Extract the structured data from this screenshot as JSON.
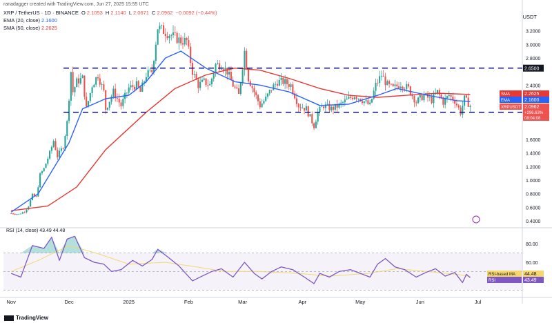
{
  "header": {
    "credit": "ranadagger created with TradingView.com, Jun 27, 2025 15:55 UTC",
    "symbol": "XRP / TetherUS · 1D · BINANCE",
    "ohlc": {
      "o_label": "O",
      "o": "2.1053",
      "h_label": "H",
      "h": "2.1140",
      "l_label": "L",
      "l": "2.0671",
      "c_label": "C",
      "c": "2.0962",
      "change": "−0.0092 (−0.44%)"
    },
    "ema_label": "EMA (20, close)",
    "ema_value": "2.1600",
    "sma_label": "SMA (50, close)",
    "sma_value": "2.2625"
  },
  "currency": "USDT",
  "footer_brand": "TradingView",
  "colors": {
    "up": "#26a69a",
    "down": "#ef5350",
    "ema": "#2962ff",
    "sma": "#e53935",
    "rsi": "#7e57c2",
    "rsi_ma": "#f5d76e",
    "level": "#1a237e"
  },
  "chart_data": [
    {
      "type": "candlestick",
      "title": "XRP / TetherUS · 1D · BINANCE",
      "x_ticks": [
        "Nov",
        "Dec",
        "2025",
        "Feb",
        "Mar",
        "Apr",
        "May",
        "Jun",
        "Jul"
      ],
      "y_ticks": [
        "0.4000",
        "0.6000",
        "0.8000",
        "1.0000",
        "1.2000",
        "1.4000",
        "1.6000",
        "2.0000",
        "2.4000",
        "2.8000",
        "3.0000",
        "3.2000"
      ],
      "ylim": [
        0.35,
        3.45
      ],
      "levels": [
        {
          "value": 2.65,
          "label": "2.6500"
        },
        {
          "value": 2.0,
          "label": "2.0000"
        }
      ],
      "labels": [
        {
          "name": "SMA",
          "value": "2.2625"
        },
        {
          "name": "EMA",
          "value": "2.1600"
        },
        {
          "name": "XRPUSDT",
          "value": "2.0962",
          "extra": [
            "+296.63%",
            "08:04:08"
          ]
        }
      ],
      "price_path": [
        [
          "2024-11-01",
          0.51
        ],
        [
          "2024-11-05",
          0.5
        ],
        [
          "2024-11-08",
          0.54
        ],
        [
          "2024-11-10",
          0.62
        ],
        [
          "2024-11-12",
          0.78
        ],
        [
          "2024-11-14",
          0.75
        ],
        [
          "2024-11-16",
          1.08
        ],
        [
          "2024-11-18",
          1.17
        ],
        [
          "2024-11-21",
          1.4
        ],
        [
          "2024-11-23",
          1.58
        ],
        [
          "2024-11-25",
          1.35
        ],
        [
          "2024-11-28",
          1.5
        ],
        [
          "2024-11-30",
          1.85
        ],
        [
          "2024-12-02",
          2.6
        ],
        [
          "2024-12-03",
          2.3
        ],
        [
          "2024-12-05",
          2.45
        ],
        [
          "2024-12-08",
          2.5
        ],
        [
          "2024-12-10",
          2.05
        ],
        [
          "2024-12-13",
          2.4
        ],
        [
          "2024-12-16",
          2.55
        ],
        [
          "2024-12-19",
          2.3
        ],
        [
          "2024-12-20",
          2.05
        ],
        [
          "2024-12-24",
          2.3
        ],
        [
          "2024-12-28",
          2.1
        ],
        [
          "2025-01-01",
          2.36
        ],
        [
          "2025-01-05",
          2.4
        ],
        [
          "2025-01-07",
          2.3
        ],
        [
          "2025-01-10",
          2.55
        ],
        [
          "2025-01-13",
          2.6
        ],
        [
          "2025-01-16",
          3.25
        ],
        [
          "2025-01-19",
          3.2
        ],
        [
          "2025-01-22",
          3.15
        ],
        [
          "2025-01-25",
          3.1
        ],
        [
          "2025-01-28",
          3.05
        ],
        [
          "2025-01-31",
          3.05
        ],
        [
          "2025-02-03",
          2.6
        ],
        [
          "2025-02-06",
          2.4
        ],
        [
          "2025-02-09",
          2.45
        ],
        [
          "2025-02-12",
          2.4
        ],
        [
          "2025-02-15",
          2.7
        ],
        [
          "2025-02-18",
          2.7
        ],
        [
          "2025-02-21",
          2.6
        ],
        [
          "2025-02-24",
          2.4
        ],
        [
          "2025-02-27",
          2.25
        ],
        [
          "2025-03-02",
          2.9
        ],
        [
          "2025-03-04",
          2.5
        ],
        [
          "2025-03-07",
          2.3
        ],
        [
          "2025-03-10",
          2.1
        ],
        [
          "2025-03-13",
          2.2
        ],
        [
          "2025-03-16",
          2.35
        ],
        [
          "2025-03-19",
          2.45
        ],
        [
          "2025-03-22",
          2.45
        ],
        [
          "2025-03-26",
          2.4
        ],
        [
          "2025-03-30",
          2.1
        ],
        [
          "2025-04-03",
          2.05
        ],
        [
          "2025-04-07",
          1.8
        ],
        [
          "2025-04-09",
          2.0
        ],
        [
          "2025-04-12",
          2.1
        ],
        [
          "2025-04-16",
          2.05
        ],
        [
          "2025-04-20",
          2.1
        ],
        [
          "2025-04-24",
          2.18
        ],
        [
          "2025-04-28",
          2.25
        ],
        [
          "2025-05-01",
          2.2
        ],
        [
          "2025-05-06",
          2.1
        ],
        [
          "2025-05-09",
          2.4
        ],
        [
          "2025-05-12",
          2.55
        ],
        [
          "2025-05-15",
          2.4
        ],
        [
          "2025-05-18",
          2.35
        ],
        [
          "2025-05-22",
          2.42
        ],
        [
          "2025-05-26",
          2.35
        ],
        [
          "2025-05-30",
          2.15
        ],
        [
          "2025-06-03",
          2.25
        ],
        [
          "2025-06-07",
          2.18
        ],
        [
          "2025-06-10",
          2.3
        ],
        [
          "2025-06-13",
          2.15
        ],
        [
          "2025-06-16",
          2.25
        ],
        [
          "2025-06-19",
          2.17
        ],
        [
          "2025-06-22",
          2.0
        ],
        [
          "2025-06-24",
          2.2
        ],
        [
          "2025-06-27",
          2.0962
        ]
      ],
      "ema_20": [
        [
          "2024-11-01",
          0.53
        ],
        [
          "2024-11-15",
          0.8
        ],
        [
          "2024-12-01",
          1.55
        ],
        [
          "2024-12-08",
          2.05
        ],
        [
          "2024-12-20",
          2.2
        ],
        [
          "2025-01-01",
          2.25
        ],
        [
          "2025-01-10",
          2.45
        ],
        [
          "2025-01-20",
          2.8
        ],
        [
          "2025-01-28",
          2.9
        ],
        [
          "2025-02-10",
          2.65
        ],
        [
          "2025-02-25",
          2.45
        ],
        [
          "2025-03-10",
          2.4
        ],
        [
          "2025-03-25",
          2.3
        ],
        [
          "2025-04-10",
          2.1
        ],
        [
          "2025-04-25",
          2.12
        ],
        [
          "2025-05-10",
          2.25
        ],
        [
          "2025-05-20",
          2.35
        ],
        [
          "2025-06-05",
          2.25
        ],
        [
          "2025-06-20",
          2.17
        ],
        [
          "2025-06-27",
          2.16
        ]
      ],
      "sma_50": [
        [
          "2024-11-01",
          0.55
        ],
        [
          "2024-11-20",
          0.62
        ],
        [
          "2024-12-05",
          0.9
        ],
        [
          "2024-12-20",
          1.45
        ],
        [
          "2025-01-10",
          2.0
        ],
        [
          "2025-01-25",
          2.35
        ],
        [
          "2025-02-10",
          2.55
        ],
        [
          "2025-02-25",
          2.65
        ],
        [
          "2025-03-10",
          2.62
        ],
        [
          "2025-03-25",
          2.5
        ],
        [
          "2025-04-10",
          2.35
        ],
        [
          "2025-04-25",
          2.25
        ],
        [
          "2025-05-10",
          2.22
        ],
        [
          "2025-05-25",
          2.25
        ],
        [
          "2025-06-10",
          2.28
        ],
        [
          "2025-06-27",
          2.2625
        ]
      ]
    },
    {
      "type": "line",
      "title": "RSI (14, close) 43.49 44.48",
      "ylim": [
        25,
        95
      ],
      "y_ticks": [
        "40.00",
        "60.00",
        "80.00"
      ],
      "labels": [
        {
          "name": "RSI-based MA",
          "value": "44.48"
        },
        {
          "name": "RSI",
          "value": "43.49"
        }
      ],
      "rsi": [
        [
          "2024-11-01",
          48
        ],
        [
          "2024-11-06",
          44
        ],
        [
          "2024-11-12",
          78
        ],
        [
          "2024-11-18",
          75
        ],
        [
          "2024-11-22",
          87
        ],
        [
          "2024-11-26",
          62
        ],
        [
          "2024-11-30",
          85
        ],
        [
          "2024-12-04",
          88
        ],
        [
          "2024-12-09",
          65
        ],
        [
          "2024-12-14",
          60
        ],
        [
          "2024-12-19",
          58
        ],
        [
          "2024-12-23",
          50
        ],
        [
          "2024-12-28",
          52
        ],
        [
          "2025-01-03",
          62
        ],
        [
          "2025-01-08",
          56
        ],
        [
          "2025-01-13",
          63
        ],
        [
          "2025-01-16",
          74
        ],
        [
          "2025-01-21",
          66
        ],
        [
          "2025-01-27",
          56
        ],
        [
          "2025-02-03",
          40
        ],
        [
          "2025-02-08",
          45
        ],
        [
          "2025-02-13",
          50
        ],
        [
          "2025-02-18",
          53
        ],
        [
          "2025-02-24",
          44
        ],
        [
          "2025-03-02",
          60
        ],
        [
          "2025-03-07",
          48
        ],
        [
          "2025-03-11",
          42
        ],
        [
          "2025-03-16",
          50
        ],
        [
          "2025-03-21",
          55
        ],
        [
          "2025-03-27",
          52
        ],
        [
          "2025-04-02",
          44
        ],
        [
          "2025-04-07",
          37
        ],
        [
          "2025-04-10",
          48
        ],
        [
          "2025-04-15",
          44
        ],
        [
          "2025-04-20",
          50
        ],
        [
          "2025-04-26",
          52
        ],
        [
          "2025-05-01",
          48
        ],
        [
          "2025-05-06",
          44
        ],
        [
          "2025-05-10",
          58
        ],
        [
          "2025-05-14",
          64
        ],
        [
          "2025-05-19",
          55
        ],
        [
          "2025-05-24",
          52
        ],
        [
          "2025-05-30",
          44
        ],
        [
          "2025-06-04",
          49
        ],
        [
          "2025-06-09",
          53
        ],
        [
          "2025-06-14",
          45
        ],
        [
          "2025-06-19",
          49
        ],
        [
          "2025-06-23",
          38
        ],
        [
          "2025-06-25",
          47
        ],
        [
          "2025-06-27",
          43.49
        ]
      ],
      "rsi_ma": [
        [
          "2024-11-01",
          50
        ],
        [
          "2024-11-15",
          62
        ],
        [
          "2024-12-01",
          78
        ],
        [
          "2024-12-15",
          70
        ],
        [
          "2025-01-01",
          58
        ],
        [
          "2025-01-20",
          60
        ],
        [
          "2025-02-05",
          55
        ],
        [
          "2025-02-20",
          50
        ],
        [
          "2025-03-10",
          50
        ],
        [
          "2025-03-30",
          48
        ],
        [
          "2025-04-15",
          45
        ],
        [
          "2025-05-05",
          48
        ],
        [
          "2025-05-20",
          53
        ],
        [
          "2025-06-05",
          50
        ],
        [
          "2025-06-20",
          47
        ],
        [
          "2025-06-27",
          44.48
        ]
      ]
    }
  ]
}
